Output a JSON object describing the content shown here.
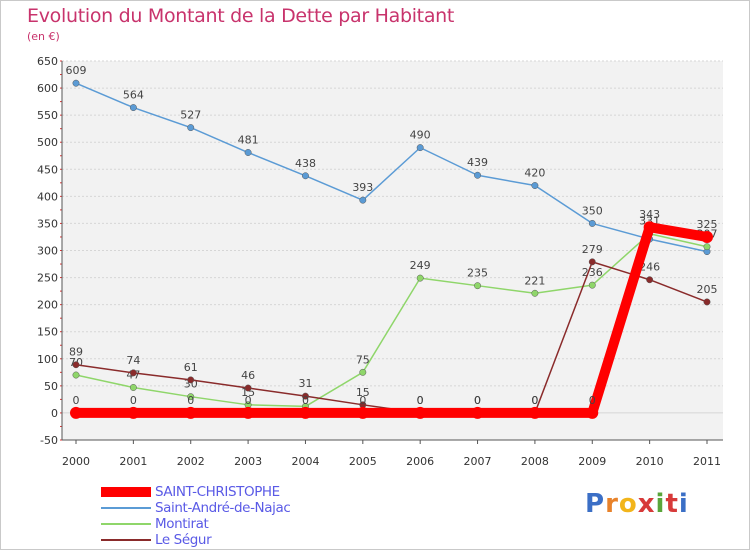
{
  "title": "Evolution du Montant de la Dette par Habitant",
  "subtitle": "(en €)",
  "logo": {
    "letters": [
      "P",
      "r",
      "o",
      "x",
      "i",
      "t",
      "i"
    ],
    "colors": [
      "#3b6fc6",
      "#e8822a",
      "#f2b51b",
      "#d73a3a",
      "#5aa53a",
      "#d73a3a",
      "#3b6fc6"
    ]
  },
  "chart_data": {
    "type": "line",
    "x": [
      "2000",
      "2001",
      "2002",
      "2003",
      "2004",
      "2005",
      "2006",
      "2007",
      "2008",
      "2009",
      "2010",
      "2011"
    ],
    "ylim": [
      -50,
      650
    ],
    "yticks": [
      "650",
      "600",
      "550",
      "500",
      "450",
      "400",
      "350",
      "300",
      "250",
      "200",
      "150",
      "100",
      "50",
      "0",
      "-50"
    ],
    "grid": "horizontal",
    "legend_position": "bottom-left",
    "series": [
      {
        "name": "Saint-André-de-Najac",
        "color": "#5b9bd5",
        "values": [
          609,
          564,
          527,
          481,
          438,
          393,
          490,
          439,
          420,
          350,
          321,
          298
        ],
        "labels": [
          "609",
          "564",
          "527",
          "481",
          "438",
          "393",
          "490",
          "439",
          "420",
          "350",
          "",
          ""
        ]
      },
      {
        "name": "Montirat",
        "color": "#8fd66a",
        "values": [
          70,
          47,
          30,
          15,
          12,
          75,
          249,
          235,
          221,
          236,
          331,
          307
        ],
        "labels": [
          "70",
          "47",
          "30",
          "15",
          "",
          "75",
          "249",
          "235",
          "221",
          "236",
          "331",
          "307"
        ]
      },
      {
        "name": "Le Ségur",
        "color": "#8a2b2b",
        "values": [
          89,
          74,
          61,
          46,
          31,
          15,
          0,
          0,
          0,
          279,
          246,
          205
        ],
        "labels": [
          "89",
          "74",
          "61",
          "46",
          "31",
          "15",
          "0",
          "0",
          "0",
          "279",
          "246",
          "205"
        ]
      },
      {
        "name": "SAINT-CHRISTOPHE",
        "color": "#ff0000",
        "values": [
          0,
          0,
          0,
          0,
          0,
          0,
          0,
          0,
          0,
          0,
          343,
          325
        ],
        "labels": [
          "0",
          "0",
          "0",
          "0",
          "0",
          "0",
          "0",
          "0",
          "0",
          "0",
          "343",
          "325"
        ],
        "thick": true
      }
    ],
    "legend": [
      {
        "name": "SAINT-CHRISTOPHE",
        "color": "#ff0000",
        "text_color": "#5a5ae6",
        "thick": true
      },
      {
        "name": "Saint-André-de-Najac",
        "color": "#5b9bd5",
        "text_color": "#5a5ae6"
      },
      {
        "name": "Montirat",
        "color": "#8fd66a",
        "text_color": "#5a5ae6"
      },
      {
        "name": "Le Ségur",
        "color": "#8a2b2b",
        "text_color": "#5a5ae6"
      }
    ]
  }
}
